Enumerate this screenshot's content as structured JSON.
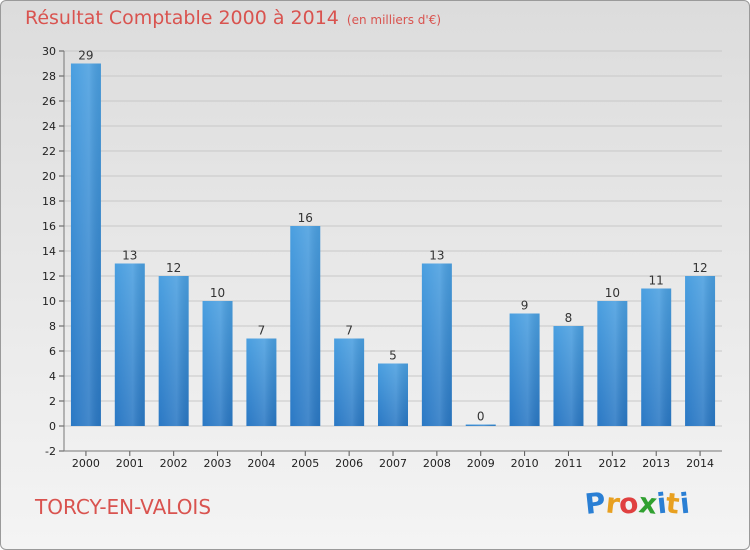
{
  "title": "Résultat Comptable 2000 à 2014",
  "subtitle": "(en milliers d'€)",
  "place": "TORCY-EN-VALOIS",
  "logo": {
    "text": "Proxiti",
    "letters": [
      "P",
      "r",
      "o",
      "x",
      "i",
      "t",
      "i"
    ],
    "colors": [
      "#2a7fd4",
      "#e8a020",
      "#e04040",
      "#30a030",
      "#2a7fd4",
      "#e8a020",
      "#2a7fd4"
    ]
  },
  "colors": {
    "title": "#d9534f",
    "bar": "#4a9fe0",
    "bar_dark": "#2a78c4",
    "grid": "#c8c8c8"
  },
  "chart_data": {
    "type": "bar",
    "title": "Résultat Comptable 2000 à 2014",
    "subtitle": "(en milliers d'€)",
    "xlabel": "",
    "ylabel": "",
    "categories": [
      "2000",
      "2001",
      "2002",
      "2003",
      "2004",
      "2005",
      "2006",
      "2007",
      "2008",
      "2009",
      "2010",
      "2011",
      "2012",
      "2013",
      "2014"
    ],
    "values": [
      29,
      13,
      12,
      10,
      7,
      16,
      7,
      5,
      13,
      0,
      9,
      8,
      10,
      11,
      12
    ],
    "ylim": [
      -2,
      30
    ],
    "yticks": [
      -2,
      0,
      2,
      4,
      6,
      8,
      10,
      12,
      14,
      16,
      18,
      20,
      22,
      24,
      26,
      28,
      30
    ],
    "grid": "horizontal"
  }
}
